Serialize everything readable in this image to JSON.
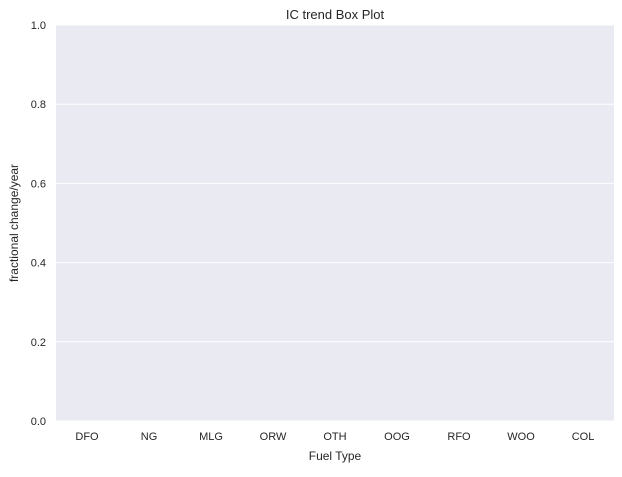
{
  "chart_data": {
    "type": "box",
    "title": "IC trend Box Plot",
    "xlabel": "Fuel Type",
    "ylabel": "fractional change/year",
    "categories": [
      "DFO",
      "NG",
      "MLG",
      "ORW",
      "OTH",
      "OOG",
      "RFO",
      "WOO",
      "COL"
    ],
    "series": [],
    "ylim": [
      0.0,
      1.0
    ],
    "yticks": [
      "0.0",
      "0.2",
      "0.4",
      "0.6",
      "0.8",
      "1.0"
    ],
    "grid": true,
    "legend": "none",
    "colors": {
      "plot_background": "#EAEAF2",
      "grid": "#FFFFFF",
      "text": "#262626"
    }
  }
}
